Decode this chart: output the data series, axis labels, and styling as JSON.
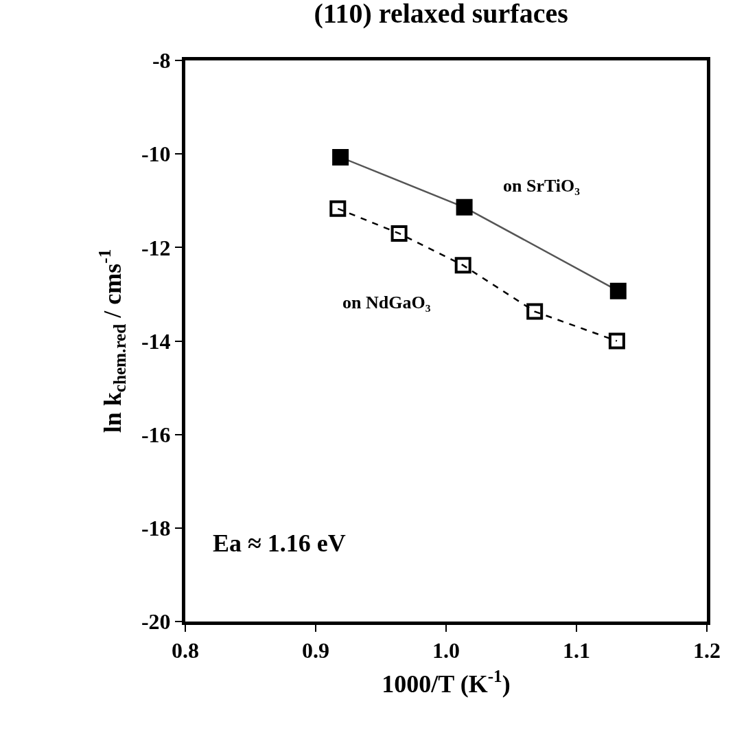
{
  "chart_data": {
    "type": "line",
    "title": "(110) relaxed surfaces",
    "xlabel": "1000/T (K$^{-1}$)",
    "ylabel": "ln k$_{chem.red}$ / cms$^{-1}$",
    "series": [
      {
        "name": "on SrTiO₃",
        "color": "#000000",
        "x": [
          0.919,
          1.014,
          1.132
        ],
        "values": [
          -10.07,
          -11.14,
          -12.93
        ],
        "marker": "square",
        "line_style": "solid"
      },
      {
        "name": "on NdGaO₃",
        "color": "#000000",
        "x": [
          0.917,
          0.964,
          1.013,
          1.068,
          1.131
        ],
        "values": [
          -11.17,
          -11.7,
          -12.38,
          -13.37,
          -14.0
        ],
        "marker": "square",
        "line_style": "dashed"
      }
    ],
    "annotations": [
      "Ea ≈ 1.16 eV"
    ],
    "xlim": [
      0.8,
      1.2
    ],
    "xticks": [
      {
        "value": 0.8,
        "label": "0.8"
      },
      {
        "value": 0.9,
        "label": "0.9"
      },
      {
        "value": 1.0,
        "label": "1.0"
      },
      {
        "value": 1.1,
        "label": "1.1"
      },
      {
        "value": 1.2,
        "label": "1.2"
      }
    ],
    "ylim": [
      -20,
      -8
    ],
    "yticks": [
      -20,
      -18,
      -16,
      -14,
      -12,
      -10,
      -8
    ],
    "legend": false
  }
}
